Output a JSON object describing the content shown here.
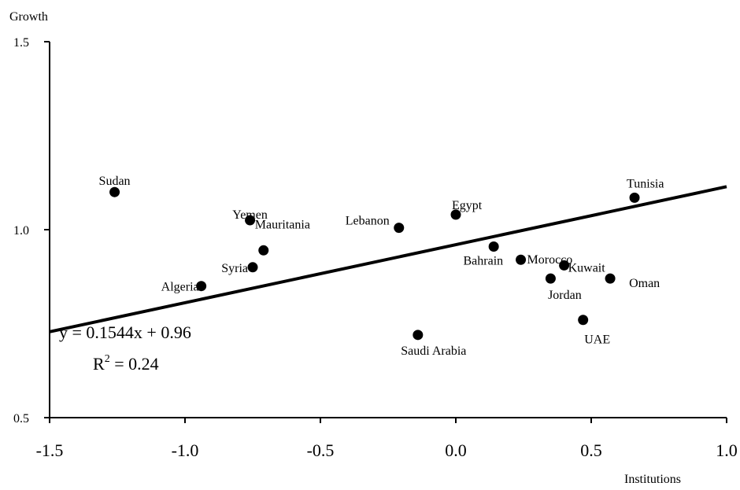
{
  "chart_data": {
    "type": "scatter",
    "xlabel": "Institutions",
    "ylabel": "Growth",
    "xlim": [
      -1.5,
      1.0
    ],
    "ylim": [
      0.5,
      1.5
    ],
    "xticks": [
      "-1.5",
      "-1.0",
      "-0.5",
      "0.0",
      "0.5",
      "1.0"
    ],
    "yticks": [
      "0.5",
      "1.0",
      "1.5"
    ],
    "grid": false,
    "legend": "none",
    "points": [
      {
        "label": "Sudan",
        "x": -1.26,
        "y": 1.1
      },
      {
        "label": "Yemen",
        "x": -0.76,
        "y": 1.025
      },
      {
        "label": "Mauritania",
        "x": -0.71,
        "y": 0.945
      },
      {
        "label": "Syria",
        "x": -0.75,
        "y": 0.9
      },
      {
        "label": "Algeria",
        "x": -0.94,
        "y": 0.85
      },
      {
        "label": "Lebanon",
        "x": -0.21,
        "y": 1.005
      },
      {
        "label": "Egypt",
        "x": 0.0,
        "y": 1.04
      },
      {
        "label": "Saudi Arabia",
        "x": -0.14,
        "y": 0.72
      },
      {
        "label": "Bahrain",
        "x": 0.14,
        "y": 0.955
      },
      {
        "label": "Morocco",
        "x": 0.24,
        "y": 0.92
      },
      {
        "label": "Kuwait",
        "x": 0.4,
        "y": 0.905
      },
      {
        "label": "Jordan",
        "x": 0.35,
        "y": 0.87
      },
      {
        "label": "Oman",
        "x": 0.57,
        "y": 0.87
      },
      {
        "label": "UAE",
        "x": 0.47,
        "y": 0.76
      },
      {
        "label": "Tunisia",
        "x": 0.66,
        "y": 1.085
      }
    ],
    "trendline": {
      "slope": 0.1544,
      "intercept": 0.96,
      "equation": "y = 0.1544x + 0.96",
      "r2_prefix": "R",
      "r2_sup": "2",
      "r2_suffix": " = 0.24"
    }
  }
}
